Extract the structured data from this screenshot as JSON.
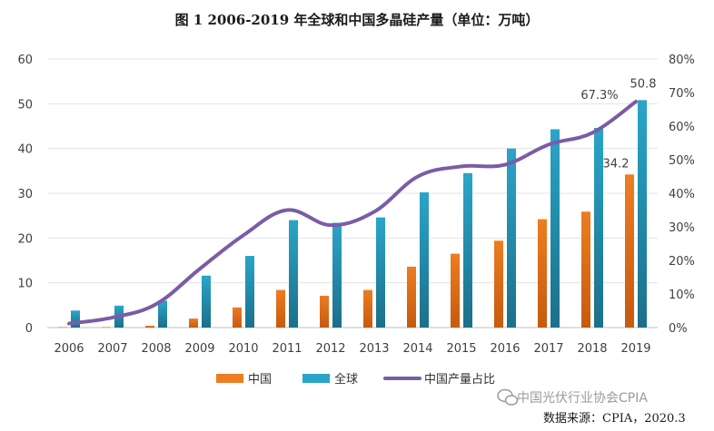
{
  "chart_data": {
    "type": "bar",
    "title": "图 1 2006-2019 年全球和中国多晶硅产量（单位：万吨）",
    "categories": [
      "2006",
      "2007",
      "2008",
      "2009",
      "2010",
      "2011",
      "2012",
      "2013",
      "2014",
      "2015",
      "2016",
      "2017",
      "2018",
      "2019"
    ],
    "series": [
      {
        "name": "中国",
        "kind": "bar",
        "axis": "left",
        "color": "#ed7d22",
        "values": [
          0.1,
          0.1,
          0.4,
          2.0,
          4.5,
          8.4,
          7.1,
          8.4,
          13.6,
          16.5,
          19.4,
          24.2,
          25.9,
          34.2
        ]
      },
      {
        "name": "全球",
        "kind": "bar",
        "axis": "left",
        "color": "#2aa5c8",
        "values": [
          3.8,
          4.9,
          6.0,
          11.6,
          16.0,
          24.0,
          23.4,
          24.6,
          30.2,
          34.5,
          40.0,
          44.3,
          44.6,
          50.8
        ]
      },
      {
        "name": "中国产量占比",
        "kind": "line",
        "axis": "right",
        "color": "#7b5ca6",
        "values": [
          1.2,
          3.0,
          7.0,
          17.5,
          27.5,
          35.0,
          30.5,
          34.5,
          45.0,
          48.0,
          48.5,
          54.5,
          58.0,
          67.3
        ]
      }
    ],
    "yleft": {
      "ylim": [
        0,
        60
      ],
      "ticks": [
        "0",
        "10",
        "20",
        "30",
        "40",
        "50",
        "60"
      ]
    },
    "yright": {
      "ylim": [
        0,
        80
      ],
      "ticks": [
        "0%",
        "10%",
        "20%",
        "30%",
        "40%",
        "50%",
        "60%",
        "70%",
        "80%"
      ]
    },
    "annotations": {
      "global_2019": "50.8",
      "china_2019": "34.2",
      "share_2019": "67.3%"
    },
    "grid": true,
    "legend": "bottom"
  },
  "footer": {
    "watermark": "中国光伏行业协会CPIA",
    "source": "数据来源：CPIA，2020.3"
  }
}
